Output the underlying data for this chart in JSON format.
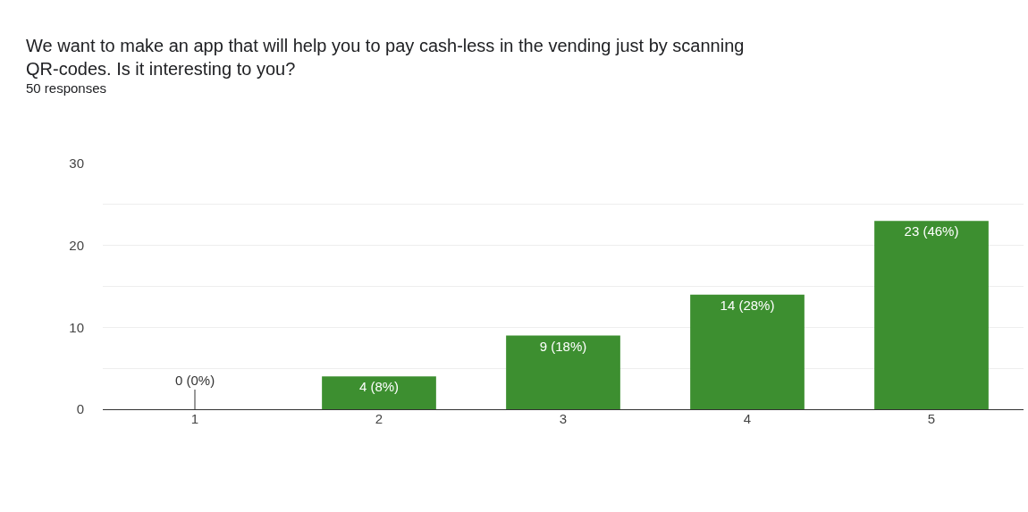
{
  "chart_data": {
    "type": "bar",
    "title": "We want to make an app that will help you to pay cash-less in the vending just by scanning QR-codes. Is it interesting to you?",
    "subtitle": "50 responses",
    "categories": [
      "1",
      "2",
      "3",
      "4",
      "5"
    ],
    "values": [
      0,
      4,
      9,
      14,
      23
    ],
    "value_labels": [
      "0 (0%)",
      "4 (8%)",
      "9 (18%)",
      "14 (28%)",
      "23 (46%)"
    ],
    "color": "#3d8f30",
    "ylim": [
      0,
      30
    ],
    "yticks": [
      0,
      {
        "value": 5,
        "label": null
      },
      10,
      {
        "value": 15,
        "label": null
      },
      20,
      {
        "value": 25,
        "label": null
      },
      30
    ],
    "grid": true
  }
}
